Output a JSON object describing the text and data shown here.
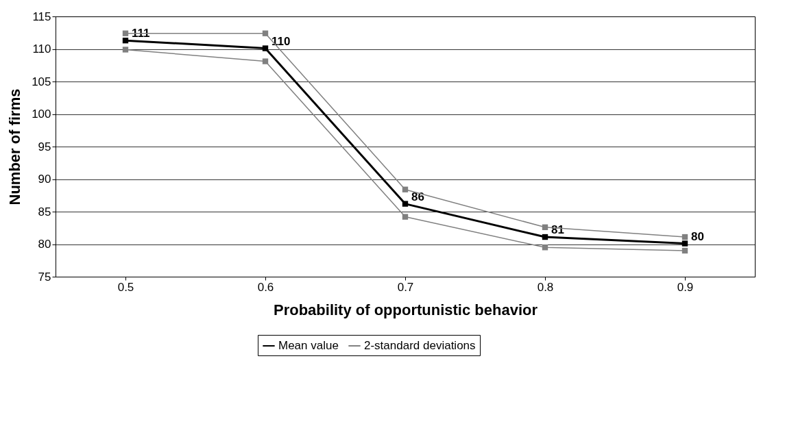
{
  "chart_data": {
    "type": "line",
    "xlabel": "Probability of opportunistic behavior",
    "ylabel": "Number of firms",
    "categories": [
      "0.5",
      "0.6",
      "0.7",
      "0.8",
      "0.9"
    ],
    "series": [
      {
        "name": "Mean value",
        "color": "#000000",
        "values": [
          111.3,
          110.1,
          86.2,
          81.1,
          80.1
        ],
        "value_labels": [
          "111",
          "110",
          "86",
          "81",
          "80"
        ]
      },
      {
        "name": "2-standard deviations",
        "color": "#808080",
        "values": [
          112.4,
          112.4,
          88.4,
          82.6,
          81.1
        ]
      },
      {
        "color": "#808080",
        "values": [
          109.9,
          108.1,
          84.2,
          79.5,
          79.0
        ]
      }
    ],
    "ylim": [
      75,
      115
    ],
    "yticks": [
      75,
      80,
      85,
      90,
      95,
      100,
      105,
      110,
      115
    ],
    "grid": "y",
    "legend": "bottom",
    "marker": "square",
    "line_style": "solid"
  }
}
